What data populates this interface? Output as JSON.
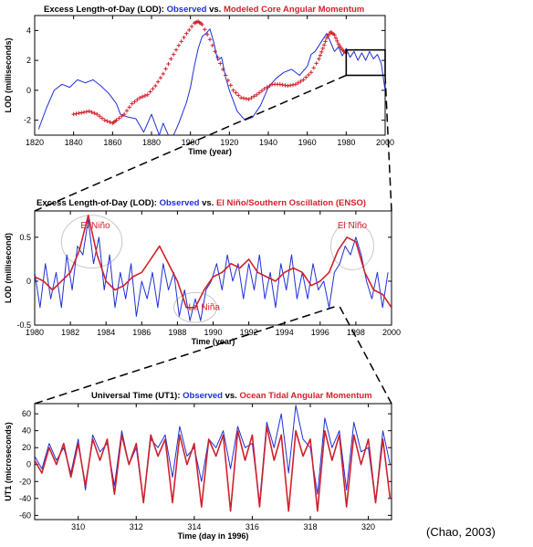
{
  "colors": {
    "observed": "#1f2fd6",
    "model": "#d0212b",
    "axis": "#000000",
    "ellipse": "#c8c8c8"
  },
  "citation": "(Chao, 2003)",
  "chart_data": [
    {
      "type": "line",
      "title": {
        "lead": "Excess Length-of-Day (LOD): ",
        "series_a": "Observed",
        "vs": " vs. ",
        "series_b": "Modeled Core Angular Momentum"
      },
      "xlabel": "Time (year)",
      "ylabel": "LOD (milliseconds)",
      "xlim": [
        1820,
        2000
      ],
      "ylim": [
        -3,
        5
      ],
      "xticks": [
        1820,
        1840,
        1860,
        1880,
        1900,
        1920,
        1940,
        1960,
        1980,
        2000
      ],
      "yticks": [
        -2,
        0,
        2,
        4
      ],
      "zoom_box": {
        "x": [
          1980,
          2000
        ],
        "y": [
          1,
          2.7
        ]
      },
      "series": [
        {
          "name": "Observed",
          "style": "line",
          "x": [
            1822,
            1826,
            1830,
            1834,
            1838,
            1842,
            1846,
            1850,
            1854,
            1858,
            1862,
            1864,
            1868,
            1872,
            1876,
            1880,
            1884,
            1886,
            1890,
            1894,
            1898,
            1900,
            1902,
            1904,
            1906,
            1908,
            1910,
            1912,
            1914,
            1916,
            1918,
            1920,
            1924,
            1928,
            1932,
            1936,
            1940,
            1944,
            1948,
            1952,
            1956,
            1960,
            1962,
            1964,
            1966,
            1968,
            1970,
            1972,
            1974,
            1976,
            1978,
            1980,
            1982,
            1984,
            1986,
            1988,
            1990,
            1992,
            1994,
            1996,
            1998,
            2000
          ],
          "y": [
            -2.6,
            -1.2,
            0.0,
            0.4,
            0.2,
            0.7,
            0.5,
            0.7,
            0.3,
            -0.2,
            -0.9,
            -1.6,
            -1.8,
            -1.9,
            -2.8,
            -1.6,
            -3.0,
            -2.2,
            -3.4,
            -2.2,
            -0.8,
            0.2,
            1.6,
            2.8,
            3.6,
            3.8,
            4.1,
            3.2,
            2.0,
            2.2,
            0.9,
            0.0,
            -1.4,
            -2.0,
            -1.8,
            -1.0,
            0.2,
            0.8,
            1.2,
            1.4,
            1.0,
            1.6,
            2.4,
            2.6,
            3.0,
            3.4,
            3.8,
            3.2,
            2.6,
            2.9,
            2.3,
            2.8,
            2.2,
            2.6,
            2.0,
            2.5,
            2.0,
            2.6,
            2.1,
            2.4,
            1.8,
            0.0
          ]
        },
        {
          "name": "Modeled Core Angular Momentum",
          "style": "plus",
          "x": [
            1840,
            1844,
            1848,
            1852,
            1856,
            1860,
            1862,
            1866,
            1870,
            1874,
            1878,
            1882,
            1886,
            1890,
            1894,
            1898,
            1902,
            1904,
            1906,
            1910,
            1914,
            1918,
            1922,
            1926,
            1930,
            1934,
            1938,
            1942,
            1946,
            1950,
            1954,
            1958,
            1962,
            1966,
            1968,
            1970,
            1972,
            1974,
            1976,
            1978,
            1980
          ],
          "y": [
            -1.6,
            -1.5,
            -1.4,
            -1.6,
            -2.0,
            -2.2,
            -2.0,
            -1.6,
            -0.9,
            -0.5,
            -0.3,
            0.3,
            1.1,
            2.1,
            3.0,
            3.8,
            4.5,
            4.6,
            4.4,
            3.4,
            2.2,
            1.0,
            0.0,
            -0.5,
            -0.6,
            -0.3,
            0.1,
            0.4,
            0.4,
            0.3,
            0.4,
            0.7,
            1.2,
            2.1,
            2.8,
            3.5,
            3.9,
            3.7,
            3.1,
            2.7,
            2.5
          ]
        }
      ]
    },
    {
      "type": "line",
      "title": {
        "lead": "Excess Length-of-Day (LOD): ",
        "series_a": "Observed",
        "vs": " vs. ",
        "series_b": "El Niño/Southern Oscillation (ENSO)"
      },
      "xlabel": "Time (year)",
      "ylabel": "LOD (millisecond)",
      "xlim": [
        1980,
        2000
      ],
      "ylim": [
        -0.5,
        0.8
      ],
      "xticks": [
        1980,
        1982,
        1984,
        1986,
        1988,
        1990,
        1992,
        1994,
        1996,
        1998,
        2000
      ],
      "yticks": [
        -0.5,
        0,
        0.5
      ],
      "annotations": [
        {
          "text": "El Niño",
          "x": 1983.4,
          "y": 0.6
        },
        {
          "text": "El Niño",
          "x": 1997.8,
          "y": 0.6
        },
        {
          "text": "La Niña",
          "x": 1989.5,
          "y": -0.33
        }
      ],
      "highlight_ellipses": [
        {
          "x": 1983.2,
          "y": 0.45,
          "rx": 1.7,
          "ry": 0.3
        },
        {
          "x": 1997.8,
          "y": 0.4,
          "rx": 1.2,
          "ry": 0.27
        },
        {
          "x": 1989.0,
          "y": -0.3,
          "rx": 1.2,
          "ry": 0.17
        }
      ],
      "series": [
        {
          "name": "Observed",
          "style": "line",
          "x": [
            1980.0,
            1980.3,
            1980.6,
            1980.9,
            1981.2,
            1981.5,
            1981.8,
            1982.1,
            1982.4,
            1982.7,
            1983.0,
            1983.3,
            1983.6,
            1983.9,
            1984.2,
            1984.5,
            1984.8,
            1985.1,
            1985.4,
            1985.7,
            1986.0,
            1986.3,
            1986.6,
            1986.9,
            1987.2,
            1987.5,
            1987.8,
            1988.1,
            1988.4,
            1988.7,
            1989.0,
            1989.3,
            1989.6,
            1989.9,
            1990.2,
            1990.5,
            1990.8,
            1991.1,
            1991.4,
            1991.7,
            1992.0,
            1992.3,
            1992.6,
            1992.9,
            1993.2,
            1993.5,
            1993.8,
            1994.1,
            1994.4,
            1994.7,
            1995.0,
            1995.3,
            1995.6,
            1995.9,
            1996.2,
            1996.5,
            1996.8,
            1997.1,
            1997.4,
            1997.7,
            1998.0,
            1998.3,
            1998.6,
            1998.9,
            1999.2,
            1999.5,
            1999.8
          ],
          "y": [
            0.1,
            -0.3,
            0.2,
            -0.2,
            0.1,
            -0.3,
            0.3,
            -0.1,
            0.4,
            0.3,
            0.7,
            0.2,
            0.5,
            -0.1,
            0.3,
            -0.3,
            0.1,
            -0.2,
            0.2,
            -0.4,
            0.0,
            -0.2,
            0.1,
            -0.3,
            0.2,
            -0.1,
            0.1,
            -0.4,
            -0.1,
            -0.45,
            -0.2,
            -0.45,
            -0.1,
            0.0,
            0.2,
            -0.1,
            0.3,
            0.0,
            0.2,
            -0.2,
            0.2,
            -0.1,
            0.3,
            -0.2,
            0.1,
            -0.3,
            0.2,
            -0.1,
            0.3,
            -0.2,
            0.1,
            -0.2,
            0.2,
            -0.1,
            0.0,
            -0.3,
            0.1,
            0.2,
            0.4,
            0.3,
            0.5,
            0.3,
            0.0,
            -0.2,
            0.1,
            -0.3,
            0.1
          ]
        },
        {
          "name": "El Niño/Southern Oscillation (ENSO)",
          "style": "line",
          "x": [
            1980.0,
            1980.5,
            1981.0,
            1981.5,
            1982.0,
            1982.5,
            1983.0,
            1983.5,
            1984.0,
            1984.5,
            1985.0,
            1985.5,
            1986.0,
            1986.5,
            1987.0,
            1987.5,
            1988.0,
            1988.5,
            1989.0,
            1989.5,
            1990.0,
            1990.5,
            1991.0,
            1991.5,
            1992.0,
            1992.5,
            1993.0,
            1993.5,
            1994.0,
            1994.5,
            1995.0,
            1995.5,
            1996.0,
            1996.5,
            1997.0,
            1997.5,
            1998.0,
            1998.5,
            1999.0,
            1999.5,
            2000.0
          ],
          "y": [
            0.05,
            0.0,
            -0.1,
            0.0,
            0.1,
            0.35,
            0.75,
            0.3,
            0.0,
            -0.1,
            -0.05,
            0.05,
            0.1,
            0.25,
            0.4,
            0.2,
            0.0,
            -0.3,
            -0.3,
            -0.1,
            0.05,
            0.1,
            0.2,
            0.15,
            0.25,
            0.1,
            0.05,
            0.0,
            0.1,
            0.15,
            0.1,
            -0.05,
            0.0,
            0.1,
            0.35,
            0.5,
            0.45,
            0.1,
            -0.1,
            -0.15,
            -0.3
          ]
        }
      ]
    },
    {
      "type": "line",
      "title": {
        "lead": "Universal Time (UT1): ",
        "series_a": "Observed",
        "vs": " vs. ",
        "series_b": "Ocean Tidal Angular Momentum"
      },
      "xlabel": "Time (day in 1996)",
      "ylabel": "UT1 (microseconds)",
      "xlim": [
        308.5,
        320.8
      ],
      "ylim": [
        -65,
        72
      ],
      "xticks": [
        310,
        312,
        314,
        316,
        318,
        320
      ],
      "yticks": [
        -60,
        -40,
        -20,
        0,
        20,
        40,
        60
      ],
      "series": [
        {
          "name": "Observed",
          "style": "line",
          "x": [
            308.5,
            308.75,
            309.0,
            309.25,
            309.5,
            309.75,
            310.0,
            310.25,
            310.5,
            310.75,
            311.0,
            311.25,
            311.5,
            311.75,
            312.0,
            312.25,
            312.5,
            312.75,
            313.0,
            313.25,
            313.5,
            313.75,
            314.0,
            314.25,
            314.5,
            314.75,
            315.0,
            315.25,
            315.5,
            315.75,
            316.0,
            316.25,
            316.5,
            316.75,
            317.0,
            317.25,
            317.5,
            317.75,
            318.0,
            318.25,
            318.5,
            318.75,
            319.0,
            319.25,
            319.5,
            319.75,
            320.0,
            320.25,
            320.5,
            320.75
          ],
          "y": [
            10,
            -5,
            25,
            5,
            20,
            -10,
            30,
            -30,
            35,
            15,
            25,
            -25,
            40,
            0,
            20,
            -45,
            30,
            20,
            35,
            -15,
            45,
            10,
            20,
            -20,
            30,
            20,
            40,
            -5,
            45,
            20,
            25,
            -45,
            50,
            20,
            60,
            -10,
            70,
            30,
            20,
            -35,
            55,
            20,
            40,
            -30,
            50,
            15,
            20,
            -45,
            40,
            0
          ]
        },
        {
          "name": "Ocean Tidal Angular Momentum",
          "style": "line",
          "x": [
            308.5,
            308.75,
            309.0,
            309.25,
            309.5,
            309.75,
            310.0,
            310.25,
            310.5,
            310.75,
            311.0,
            311.25,
            311.5,
            311.75,
            312.0,
            312.25,
            312.5,
            312.75,
            313.0,
            313.25,
            313.5,
            313.75,
            314.0,
            314.25,
            314.5,
            314.75,
            315.0,
            315.25,
            315.5,
            315.75,
            316.0,
            316.25,
            316.5,
            316.75,
            317.0,
            317.25,
            317.5,
            317.75,
            318.0,
            318.25,
            318.5,
            318.75,
            319.0,
            319.25,
            319.5,
            319.75,
            320.0,
            320.25,
            320.5,
            320.75
          ],
          "y": [
            5,
            -10,
            20,
            0,
            25,
            -15,
            25,
            -25,
            30,
            5,
            30,
            -35,
            35,
            0,
            25,
            -45,
            35,
            10,
            30,
            -45,
            35,
            0,
            25,
            -50,
            30,
            10,
            35,
            -55,
            40,
            5,
            35,
            -50,
            45,
            5,
            35,
            -55,
            40,
            10,
            30,
            -55,
            40,
            5,
            35,
            -50,
            35,
            0,
            30,
            -45,
            30,
            -40
          ]
        }
      ]
    }
  ]
}
